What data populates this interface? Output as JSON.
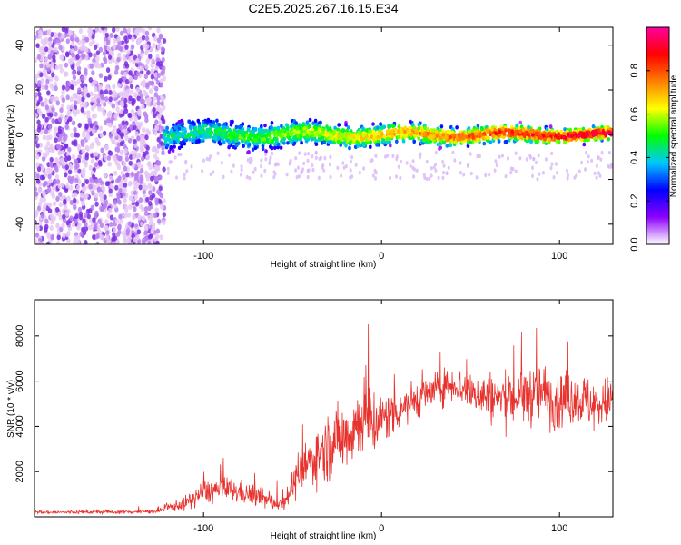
{
  "title": "C2E5.2025.267.16.15.E34",
  "colors": {
    "snr_line": "#e8322e",
    "spectrum_scatter": "#6a0dd6",
    "axis": "#000000"
  },
  "chart_data": [
    {
      "type": "heatmap",
      "name": "spectrogram",
      "xlabel": "Height of straight line (km)",
      "ylabel": "Frequency (Hz)",
      "xlim": [
        -195,
        130
      ],
      "ylim": [
        -49,
        48
      ],
      "xticks": [
        -100,
        0,
        100
      ],
      "xtick_labels": [
        "-100",
        "0",
        "100"
      ],
      "yticks": [
        -40,
        -20,
        0,
        20,
        40
      ],
      "ytick_labels": [
        "-40",
        "-20",
        "0",
        "20",
        "40"
      ],
      "noise_region_x": [
        -195,
        -122
      ],
      "signal_band": {
        "x_start": -122,
        "x_end": 130,
        "center_frequency_hz": 0,
        "halfwidth_hz_start": 6,
        "halfwidth_hz_end": 3
      },
      "colorbar": {
        "label": "Normalized spectral amplitude",
        "range": [
          0,
          1
        ],
        "ticks": [
          0.0,
          0.2,
          0.4,
          0.6,
          0.8
        ],
        "tick_labels": [
          "0.0",
          "0.2",
          "0.4",
          "0.6",
          "0.8"
        ],
        "stops": [
          "#ffffff",
          "#8c00ff",
          "#0000ff",
          "#00c8ff",
          "#00ff00",
          "#ffff00",
          "#ff7f00",
          "#ff0000",
          "#ff00a0"
        ]
      }
    },
    {
      "type": "line",
      "name": "snr",
      "xlabel": "Height of straight line (km)",
      "ylabel": "SNR (10 * v/v)",
      "xlim": [
        -195,
        130
      ],
      "ylim": [
        0,
        9600
      ],
      "xticks": [
        -100,
        0,
        100
      ],
      "xtick_labels": [
        "-100",
        "0",
        "100"
      ],
      "yticks": [
        2000,
        4000,
        6000,
        8000
      ],
      "ytick_labels": [
        "2000",
        "4000",
        "6000",
        "8000"
      ],
      "series": [
        {
          "name": "SNR",
          "x": [
            -195,
            -180,
            -160,
            -140,
            -125,
            -120,
            -110,
            -100,
            -90,
            -80,
            -70,
            -60,
            -55,
            -50,
            -45,
            -40,
            -35,
            -30,
            -25,
            -20,
            -15,
            -10,
            -5,
            0,
            10,
            20,
            30,
            40,
            50,
            60,
            70,
            80,
            90,
            100,
            110,
            120,
            130
          ],
          "values": [
            200,
            200,
            210,
            220,
            250,
            400,
            600,
            1100,
            1200,
            1100,
            900,
            600,
            650,
            1400,
            1900,
            2500,
            2800,
            3100,
            3400,
            3600,
            4000,
            4400,
            4200,
            4300,
            4800,
            5200,
            5600,
            5900,
            5500,
            5300,
            5200,
            5300,
            5500,
            5100,
            5300,
            4900,
            5200
          ],
          "noise_amplitude": [
            90,
            90,
            100,
            110,
            130,
            250,
            420,
            700,
            800,
            700,
            600,
            420,
            450,
            950,
            1200,
            1500,
            1700,
            1900,
            2000,
            2100,
            2200,
            2400,
            2100,
            1500,
            1300,
            1100,
            1000,
            1000,
            1200,
            1500,
            1600,
            1700,
            1800,
            1700,
            1600,
            1500,
            1400
          ]
        }
      ]
    }
  ]
}
